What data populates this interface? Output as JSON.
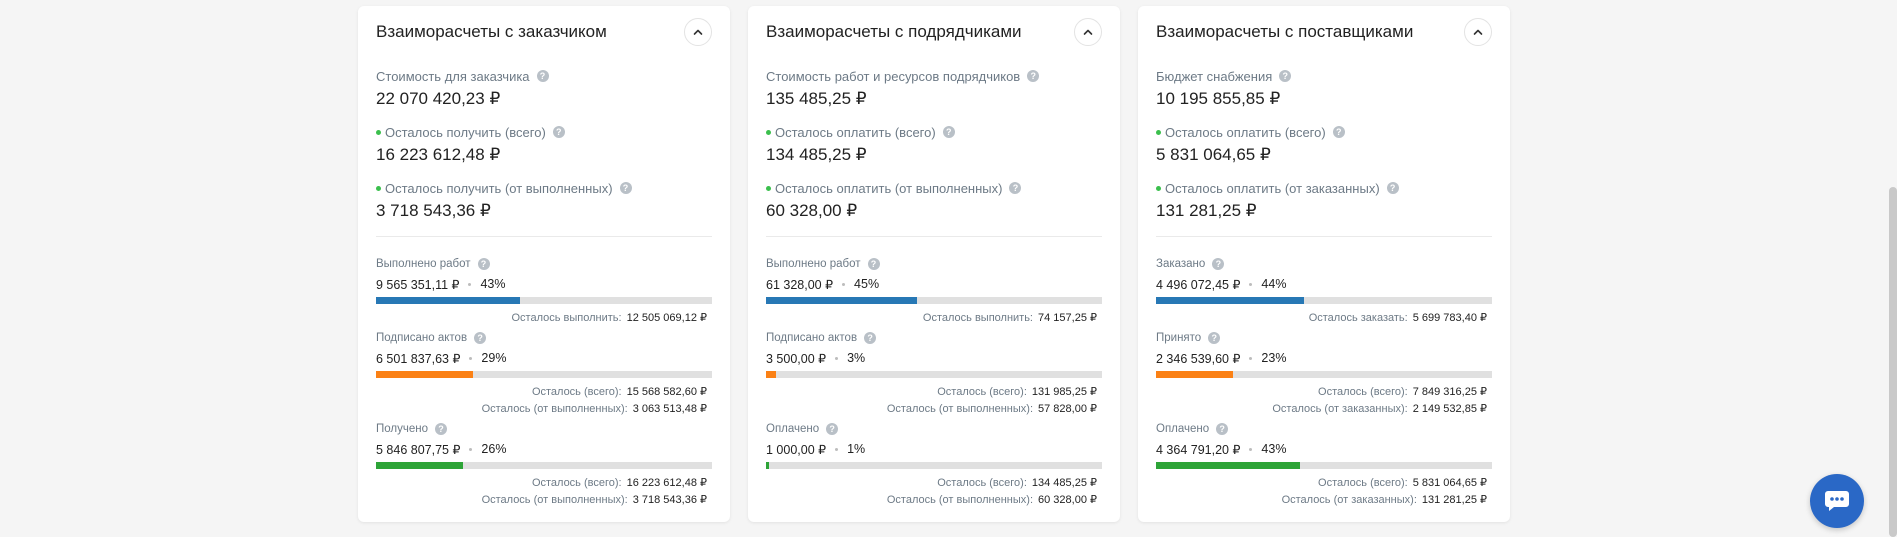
{
  "colors": {
    "accent_blue": "#2778b5",
    "orange": "#fb8115",
    "green": "#2da437",
    "chat_blue": "#2a68c6",
    "dot_green": "#3bbf4d"
  },
  "cards": [
    {
      "title": "Взаиморасчеты с заказчиком",
      "summary": [
        {
          "label": "Стоимость для заказчика",
          "value": "22 070 420,23 ₽",
          "dot": false
        },
        {
          "label": "Осталось получить (всего)",
          "value": "16 223 612,48 ₽",
          "dot": true
        },
        {
          "label": "Осталось получить (от выполненных)",
          "value": "3 718 543,36 ₽",
          "dot": true
        }
      ],
      "metrics": [
        {
          "label": "Выполнено работ",
          "amount": "9 565 351,11 ₽",
          "percent": "43%",
          "fill": 43,
          "color": "#2778b5",
          "remaining": [
            {
              "label": "Осталось выполнить:",
              "value": "12 505 069,12 ₽"
            }
          ]
        },
        {
          "label": "Подписано актов",
          "amount": "6 501 837,63 ₽",
          "percent": "29%",
          "fill": 29,
          "color": "#fb8115",
          "remaining": [
            {
              "label": "Осталось (всего):",
              "value": "15 568 582,60 ₽"
            },
            {
              "label": "Осталось (от выполненных):",
              "value": "3 063 513,48 ₽"
            }
          ]
        },
        {
          "label": "Получено",
          "amount": "5 846 807,75 ₽",
          "percent": "26%",
          "fill": 26,
          "color": "#2da437",
          "remaining": [
            {
              "label": "Осталось (всего):",
              "value": "16 223 612,48 ₽"
            },
            {
              "label": "Осталось (от выполненных):",
              "value": "3 718 543,36 ₽"
            }
          ]
        }
      ]
    },
    {
      "title": "Взаиморасчеты с подрядчиками",
      "summary": [
        {
          "label": "Стоимость работ и ресурсов подрядчиков",
          "value": "135 485,25 ₽",
          "dot": false
        },
        {
          "label": "Осталось оплатить (всего)",
          "value": "134 485,25 ₽",
          "dot": true
        },
        {
          "label": "Осталось оплатить (от выполненных)",
          "value": "60 328,00 ₽",
          "dot": true
        }
      ],
      "metrics": [
        {
          "label": "Выполнено работ",
          "amount": "61 328,00 ₽",
          "percent": "45%",
          "fill": 45,
          "color": "#2778b5",
          "remaining": [
            {
              "label": "Осталось выполнить:",
              "value": "74 157,25 ₽"
            }
          ]
        },
        {
          "label": "Подписано актов",
          "amount": "3 500,00 ₽",
          "percent": "3%",
          "fill": 3,
          "color": "#fb8115",
          "remaining": [
            {
              "label": "Осталось (всего):",
              "value": "131 985,25 ₽"
            },
            {
              "label": "Осталось (от выполненных):",
              "value": "57 828,00 ₽"
            }
          ]
        },
        {
          "label": "Оплачено",
          "amount": "1 000,00 ₽",
          "percent": "1%",
          "fill": 1,
          "color": "#2da437",
          "remaining": [
            {
              "label": "Осталось (всего):",
              "value": "134 485,25 ₽"
            },
            {
              "label": "Осталось (от выполненных):",
              "value": "60 328,00 ₽"
            }
          ]
        }
      ]
    },
    {
      "title": "Взаиморасчеты с поставщиками",
      "summary": [
        {
          "label": "Бюджет снабжения",
          "value": "10 195 855,85 ₽",
          "dot": false
        },
        {
          "label": "Осталось оплатить (всего)",
          "value": "5 831 064,65 ₽",
          "dot": true
        },
        {
          "label": "Осталось оплатить (от заказанных)",
          "value": "131 281,25 ₽",
          "dot": true
        }
      ],
      "metrics": [
        {
          "label": "Заказано",
          "amount": "4 496 072,45 ₽",
          "percent": "44%",
          "fill": 44,
          "color": "#2778b5",
          "remaining": [
            {
              "label": "Осталось заказать:",
              "value": "5 699 783,40 ₽"
            }
          ]
        },
        {
          "label": "Принято",
          "amount": "2 346 539,60 ₽",
          "percent": "23%",
          "fill": 23,
          "color": "#fb8115",
          "remaining": [
            {
              "label": "Осталось (всего):",
              "value": "7 849 316,25 ₽"
            },
            {
              "label": "Осталось (от заказанных):",
              "value": "2 149 532,85 ₽"
            }
          ]
        },
        {
          "label": "Оплачено",
          "amount": "4 364 791,20 ₽",
          "percent": "43%",
          "fill": 43,
          "color": "#2da437",
          "remaining": [
            {
              "label": "Осталось (всего):",
              "value": "5 831 064,65 ₽"
            },
            {
              "label": "Осталось (от заказанных):",
              "value": "131 281,25 ₽"
            }
          ]
        }
      ]
    }
  ],
  "icons": {
    "collapse": "chevron-up-icon",
    "help": "help-icon",
    "chat": "chat-icon"
  }
}
